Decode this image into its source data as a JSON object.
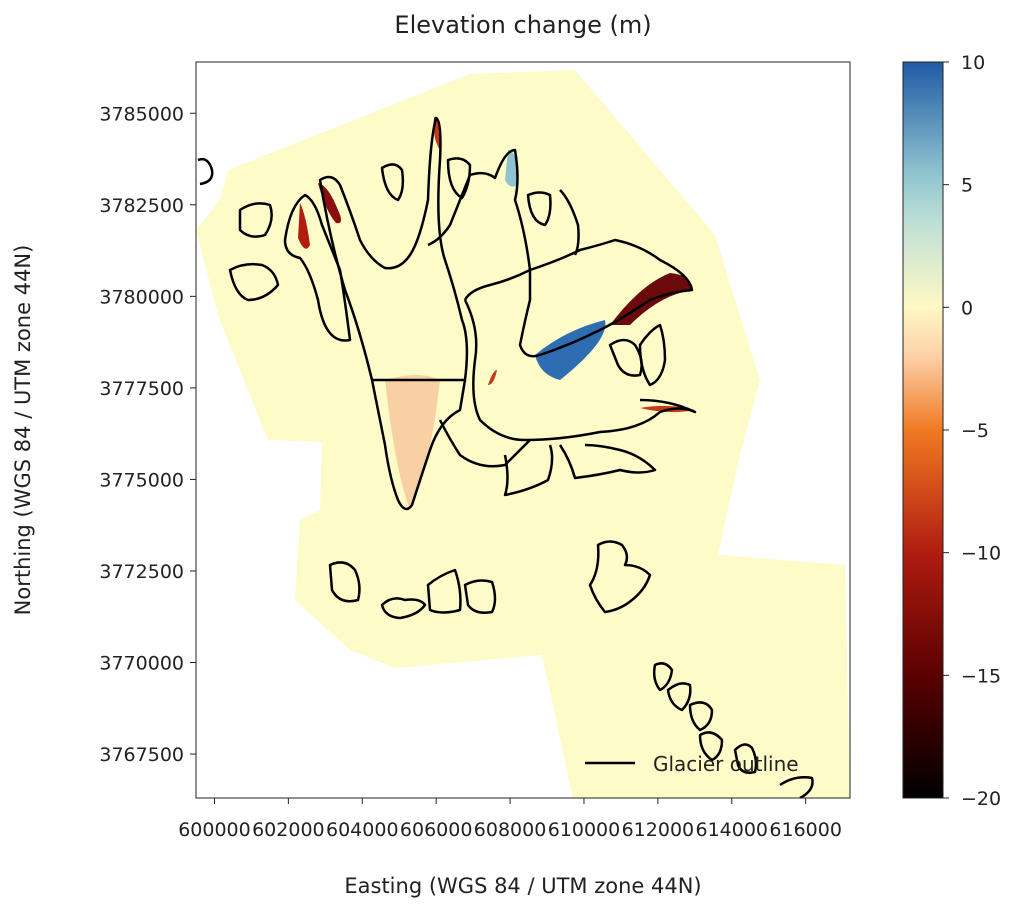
{
  "chart_data": {
    "type": "heatmap",
    "title": "Elevation change (m)",
    "xlabel": "Easting (WGS 84 / UTM zone 44N)",
    "ylabel": "Northing (WGS 84 / UTM zone 44N)",
    "xlim": [
      599500,
      617200
    ],
    "ylim": [
      3766300,
      3786400
    ],
    "x_ticks": [
      {
        "value": 600000,
        "label": "600000"
      },
      {
        "value": 602000,
        "label": "602000"
      },
      {
        "value": 604000,
        "label": "604000"
      },
      {
        "value": 606000,
        "label": "606000"
      },
      {
        "value": 608000,
        "label": "608000"
      },
      {
        "value": 610000,
        "label": "610000"
      },
      {
        "value": 612000,
        "label": "612000"
      },
      {
        "value": 614000,
        "label": "614000"
      },
      {
        "value": 616000,
        "label": "616000"
      }
    ],
    "y_ticks": [
      {
        "value": 3785000,
        "label": "3785000"
      },
      {
        "value": 3782500,
        "label": "3782500"
      },
      {
        "value": 3780000,
        "label": "3780000"
      },
      {
        "value": 3777500,
        "label": "3777500"
      },
      {
        "value": 3775000,
        "label": "3775000"
      },
      {
        "value": 3772500,
        "label": "3772500"
      },
      {
        "value": 3770000,
        "label": "3770000"
      },
      {
        "value": 3767500,
        "label": "3767500"
      }
    ],
    "colorbar": {
      "colormap": "RdYlBu",
      "vmin": -20,
      "vmax": 10,
      "stops": [
        "#000000",
        "#8b0000",
        "#f07a22",
        "#fff8c4",
        "#8ec3cf",
        "#1f5aa5"
      ],
      "ticks": [
        {
          "value": 10,
          "label": "10"
        },
        {
          "value": 5,
          "label": "5"
        },
        {
          "value": 0,
          "label": "0"
        },
        {
          "value": -5,
          "label": "−5"
        },
        {
          "value": -10,
          "label": "−10"
        },
        {
          "value": -15,
          "label": "−15"
        },
        {
          "value": -20,
          "label": "−20"
        }
      ]
    },
    "legend": {
      "label": "Glacier outline",
      "placement": "lower-right"
    },
    "grid": false
  }
}
